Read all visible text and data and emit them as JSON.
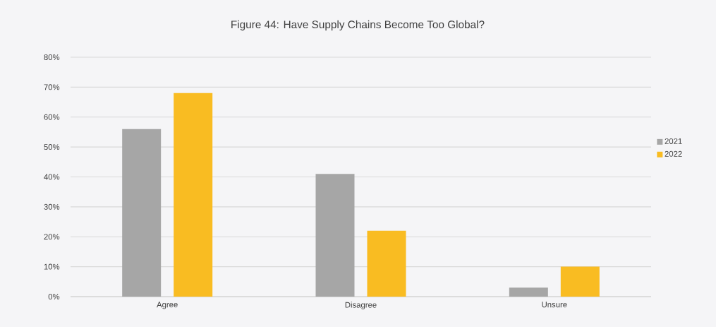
{
  "chart_data": {
    "type": "bar",
    "title": "Figure 44: Have Supply Chains Become Too Global?",
    "categories": [
      "Agree",
      "Disagree",
      "Unsure"
    ],
    "series": [
      {
        "name": "2021",
        "color": "#a6a6a6",
        "values": [
          56,
          41,
          3
        ]
      },
      {
        "name": "2022",
        "color": "#f9bc22",
        "values": [
          68,
          22,
          10
        ]
      }
    ],
    "ylim": [
      0,
      80
    ],
    "yticks": [
      {
        "value": 0,
        "label": "0%"
      },
      {
        "value": 10,
        "label": "10%"
      },
      {
        "value": 20,
        "label": "20%"
      },
      {
        "value": 30,
        "label": "30%"
      },
      {
        "value": 40,
        "label": "40%"
      },
      {
        "value": 50,
        "label": "50%"
      },
      {
        "value": 60,
        "label": "60%"
      },
      {
        "value": 70,
        "label": "70%"
      },
      {
        "value": 80,
        "label": "80%"
      }
    ],
    "grid": "y",
    "legend": "right"
  }
}
